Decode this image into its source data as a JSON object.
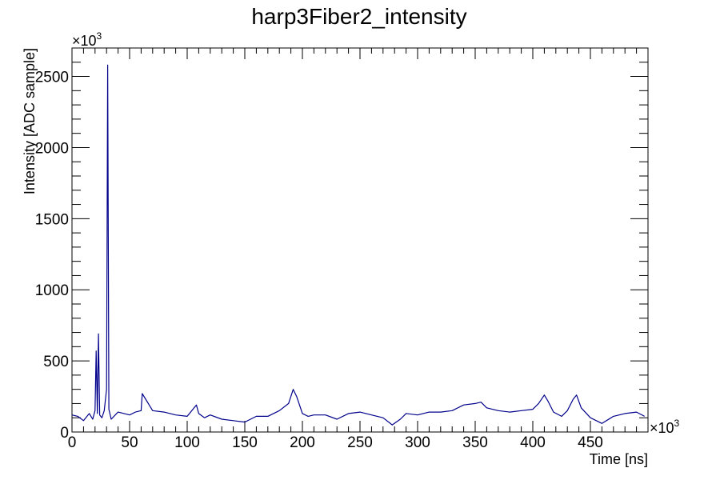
{
  "chart_data": {
    "type": "line",
    "title": "harp3Fiber2_intensity",
    "xlabel": "Time [ns]",
    "ylabel": "Intensity [ADC sample]",
    "x_multiplier": "×10",
    "x_multiplier_exp": "3",
    "y_multiplier": "×10",
    "y_multiplier_exp": "3",
    "xlim": [
      0,
      500
    ],
    "ylim": [
      0,
      2700
    ],
    "x_ticks": [
      0,
      50,
      100,
      150,
      200,
      250,
      300,
      350,
      400,
      450
    ],
    "y_ticks": [
      0,
      500,
      1000,
      1500,
      2000,
      2500
    ],
    "x_tick_labels": [
      "0",
      "50",
      "100",
      "150",
      "200",
      "250",
      "300",
      "350",
      "400",
      "450"
    ],
    "y_tick_labels": [
      "0",
      "500",
      "1000",
      "1500",
      "2000",
      "2500"
    ],
    "grid": false,
    "series": [
      {
        "color": "#00008b",
        "x": [
          0,
          5,
          10,
          15,
          18,
          20,
          21,
          22,
          23,
          24,
          26,
          28,
          30,
          31,
          32,
          34,
          40,
          50,
          55,
          60,
          61,
          70,
          80,
          90,
          100,
          108,
          110,
          115,
          120,
          130,
          140,
          150,
          160,
          170,
          180,
          188,
          192,
          195,
          200,
          205,
          210,
          220,
          230,
          240,
          250,
          260,
          270,
          278,
          285,
          290,
          300,
          310,
          320,
          330,
          340,
          350,
          355,
          360,
          370,
          380,
          390,
          400,
          405,
          410,
          413,
          418,
          425,
          430,
          435,
          438,
          442,
          450,
          460,
          470,
          480,
          490,
          497
        ],
        "y": [
          120,
          110,
          80,
          130,
          90,
          150,
          570,
          130,
          690,
          120,
          100,
          150,
          300,
          2580,
          160,
          90,
          140,
          120,
          140,
          150,
          270,
          150,
          140,
          120,
          110,
          190,
          130,
          100,
          120,
          90,
          80,
          70,
          110,
          110,
          150,
          200,
          300,
          250,
          130,
          110,
          120,
          120,
          90,
          130,
          140,
          120,
          100,
          50,
          90,
          130,
          120,
          140,
          140,
          150,
          190,
          200,
          210,
          170,
          150,
          140,
          150,
          160,
          200,
          260,
          220,
          140,
          110,
          150,
          230,
          260,
          170,
          100,
          60,
          110,
          130,
          140,
          110
        ]
      }
    ]
  }
}
